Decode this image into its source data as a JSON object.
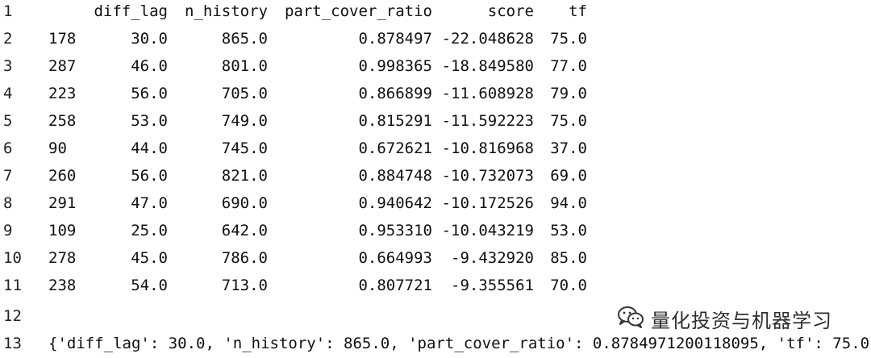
{
  "header": {
    "line_number": "1",
    "columns": [
      "diff_lag",
      "n_history",
      "part_cover_ratio",
      "score",
      "tf"
    ]
  },
  "rows": [
    {
      "line_number": "2",
      "index": "178",
      "diff_lag": "30.0",
      "n_history": "865.0",
      "part_cover_ratio": "0.878497",
      "score": "-22.048628",
      "tf": "75.0"
    },
    {
      "line_number": "3",
      "index": "287",
      "diff_lag": "46.0",
      "n_history": "801.0",
      "part_cover_ratio": "0.998365",
      "score": "-18.849580",
      "tf": "77.0"
    },
    {
      "line_number": "4",
      "index": "223",
      "diff_lag": "56.0",
      "n_history": "705.0",
      "part_cover_ratio": "0.866899",
      "score": "-11.608928",
      "tf": "79.0"
    },
    {
      "line_number": "5",
      "index": "258",
      "diff_lag": "53.0",
      "n_history": "749.0",
      "part_cover_ratio": "0.815291",
      "score": "-11.592223",
      "tf": "75.0"
    },
    {
      "line_number": "6",
      "index": "90",
      "diff_lag": "44.0",
      "n_history": "745.0",
      "part_cover_ratio": "0.672621",
      "score": "-10.816968",
      "tf": "37.0"
    },
    {
      "line_number": "7",
      "index": "260",
      "diff_lag": "56.0",
      "n_history": "821.0",
      "part_cover_ratio": "0.884748",
      "score": "-10.732073",
      "tf": "69.0"
    },
    {
      "line_number": "8",
      "index": "291",
      "diff_lag": "47.0",
      "n_history": "690.0",
      "part_cover_ratio": "0.940642",
      "score": "-10.172526",
      "tf": "94.0"
    },
    {
      "line_number": "9",
      "index": "109",
      "diff_lag": "25.0",
      "n_history": "642.0",
      "part_cover_ratio": "0.953310",
      "score": "-10.043219",
      "tf": "53.0"
    },
    {
      "line_number": "10",
      "index": "278",
      "diff_lag": "45.0",
      "n_history": "786.0",
      "part_cover_ratio": "0.664993",
      "score": "-9.432920",
      "tf": "85.0"
    },
    {
      "line_number": "11",
      "index": "238",
      "diff_lag": "54.0",
      "n_history": "713.0",
      "part_cover_ratio": "0.807721",
      "score": "-9.355561",
      "tf": "70.0"
    }
  ],
  "blank_line_number": "12",
  "result": {
    "line_number": "13",
    "text": "{'diff_lag': 30.0, 'n_history': 865.0, 'part_cover_ratio': 0.8784971200118095, 'tf': 75.0}"
  },
  "watermark": {
    "text": "量化投资与机器学习",
    "icon": "wechat-icon"
  }
}
